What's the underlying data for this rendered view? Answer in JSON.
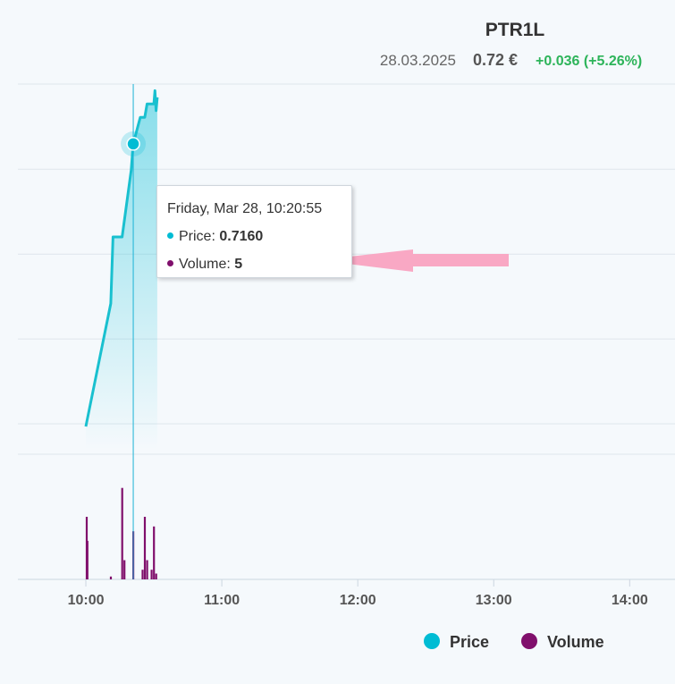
{
  "header": {
    "title": "PTR1L",
    "date": "28.03.2025",
    "price": "0.72 €",
    "change": "+0.036 (+5.26%)"
  },
  "tooltip": {
    "date": "Friday, Mar 28, 10:20:55",
    "price_label": "Price: ",
    "price_value": "0.7160",
    "volume_label": "Volume: ",
    "volume_value": "5"
  },
  "chart_data": {
    "type": "line",
    "x_ticks": [
      "10:00",
      "11:00",
      "12:00",
      "13:00",
      "14:00"
    ],
    "x_range": [
      "09:30",
      "14:20"
    ],
    "price_range": [
      0.67,
      0.725
    ],
    "volume_range": [
      0,
      13
    ],
    "grid": true,
    "legend_position": "bottom",
    "series": [
      {
        "name": "Price",
        "type": "area",
        "color": "#00bcd4",
        "points": [
          [
            "10:00:00",
            0.6735
          ],
          [
            "10:11:00",
            0.692
          ],
          [
            "10:12:00",
            0.702
          ],
          [
            "10:16:00",
            0.702
          ],
          [
            "10:20:00",
            0.712
          ],
          [
            "10:20:55",
            0.716
          ],
          [
            "10:24:00",
            0.72
          ],
          [
            "10:26:00",
            0.72
          ],
          [
            "10:27:00",
            0.722
          ],
          [
            "10:30:00",
            0.722
          ],
          [
            "10:30:30",
            0.724
          ],
          [
            "10:31:00",
            0.721
          ],
          [
            "10:31:30",
            0.723
          ]
        ]
      },
      {
        "name": "Volume",
        "type": "column",
        "color": "#800f6c",
        "points": [
          [
            "10:00:20",
            6.5
          ],
          [
            "10:00:40",
            4.0
          ],
          [
            "10:11:00",
            0.3
          ],
          [
            "10:16:00",
            9.5
          ],
          [
            "10:17:00",
            2.0
          ],
          [
            "10:20:55",
            5.0
          ],
          [
            "10:25:00",
            1.0
          ],
          [
            "10:26:00",
            6.5
          ],
          [
            "10:27:00",
            2.0
          ],
          [
            "10:29:00",
            1.0
          ],
          [
            "10:30:00",
            5.5
          ],
          [
            "10:31:00",
            0.6
          ]
        ]
      }
    ],
    "legend": [
      {
        "name": "Price",
        "color": "#00bcd4"
      },
      {
        "name": "Volume",
        "color": "#800f6c"
      }
    ],
    "hover": {
      "x": "10:20:55",
      "price": 0.716,
      "volume": 5
    },
    "annotation": {
      "type": "arrow",
      "color": "#f9a8c4",
      "pointing": "left"
    }
  }
}
